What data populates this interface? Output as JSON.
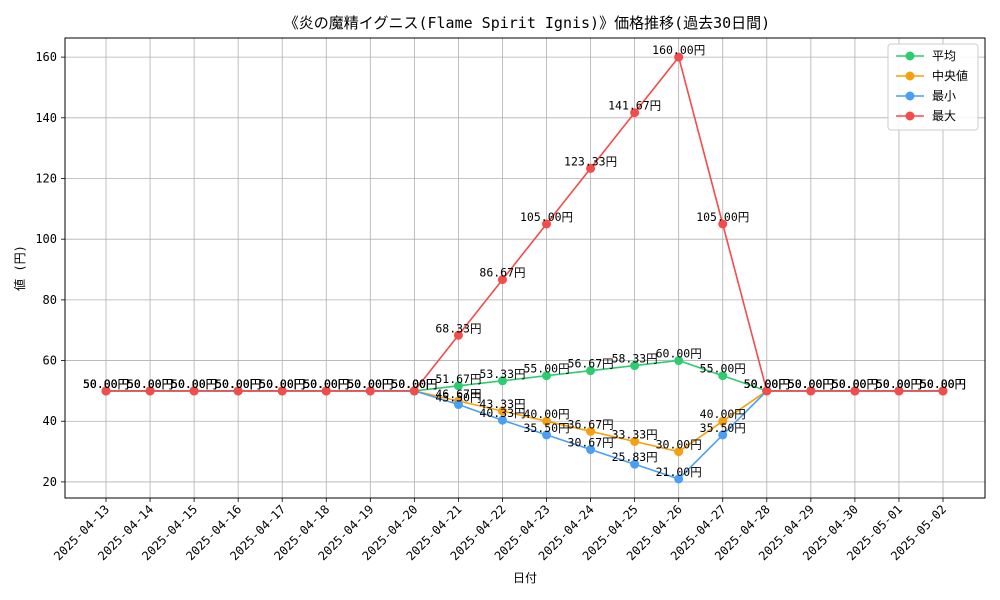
{
  "chart_data": {
    "type": "line",
    "title": "《炎の魔精イグニス(Flame Spirit Ignis)》価格推移(過去30日間)",
    "xlabel": "日付",
    "ylabel": "値 (円)",
    "ylim": [
      14.7,
      166.3
    ],
    "yticks": [
      20,
      40,
      60,
      80,
      100,
      120,
      140,
      160
    ],
    "grid": true,
    "legend_position": "top-right",
    "value_suffix": "円",
    "x": [
      "2025-04-13",
      "2025-04-14",
      "2025-04-15",
      "2025-04-16",
      "2025-04-17",
      "2025-04-18",
      "2025-04-19",
      "2025-04-20",
      "2025-04-21",
      "2025-04-22",
      "2025-04-23",
      "2025-04-24",
      "2025-04-25",
      "2025-04-26",
      "2025-04-27",
      "2025-04-28",
      "2025-04-29",
      "2025-04-30",
      "2025-05-01",
      "2025-05-02"
    ],
    "series": [
      {
        "name": "平均",
        "color": "#2ecc71",
        "values": [
          50,
          50,
          50,
          50,
          50,
          50,
          50,
          50,
          51.67,
          53.33,
          55,
          56.67,
          58.33,
          60,
          55,
          50,
          50,
          50,
          50,
          50
        ]
      },
      {
        "name": "中央値",
        "color": "#f5a00f",
        "values": [
          50,
          50,
          50,
          50,
          50,
          50,
          50,
          50,
          46.67,
          43.33,
          40,
          36.67,
          33.33,
          30,
          40,
          50,
          50,
          50,
          50,
          50
        ]
      },
      {
        "name": "最小",
        "color": "#4a9ff5",
        "values": [
          50,
          50,
          50,
          50,
          50,
          50,
          50,
          50,
          45.5,
          40.33,
          35.5,
          30.67,
          25.83,
          21,
          35.5,
          50,
          50,
          50,
          50,
          50
        ]
      },
      {
        "name": "最大",
        "color": "#f44b4b",
        "values": [
          50,
          50,
          50,
          50,
          50,
          50,
          50,
          50,
          68.33,
          86.67,
          105,
          123.33,
          141.67,
          160,
          105,
          50,
          50,
          50,
          50,
          50
        ]
      }
    ]
  }
}
